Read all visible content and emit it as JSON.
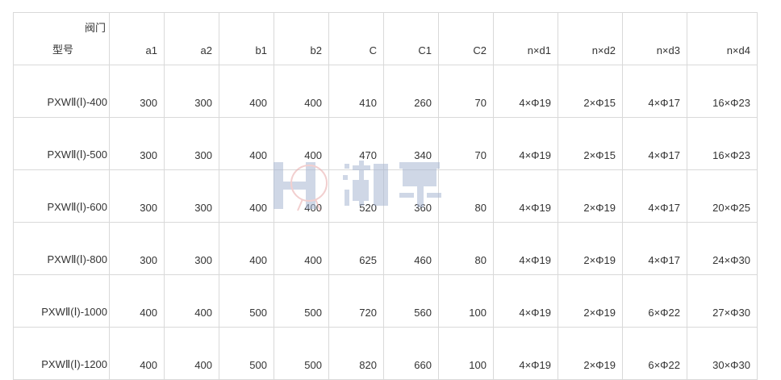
{
  "header": {
    "corner_top": "阀门",
    "corner_bottom": "型号",
    "columns": [
      "a1",
      "a2",
      "b1",
      "b2",
      "C",
      "C1",
      "C2",
      "n×d1",
      "n×d2",
      "n×d3",
      "n×d4"
    ]
  },
  "rows": [
    [
      "PXWⅡ(Ⅰ)-400",
      "300",
      "300",
      "400",
      "400",
      "410",
      "260",
      "70",
      "4×Φ19",
      "2×Φ15",
      "4×Φ17",
      "16×Φ23"
    ],
    [
      "PXWⅡ(Ⅰ)-500",
      "300",
      "300",
      "400",
      "400",
      "470",
      "340",
      "70",
      "4×Φ19",
      "2×Φ15",
      "4×Φ17",
      "16×Φ23"
    ],
    [
      "PXWⅡ(Ⅰ)-600",
      "300",
      "300",
      "400",
      "400",
      "520",
      "360",
      "80",
      "4×Φ19",
      "2×Φ19",
      "4×Φ17",
      "20×Φ25"
    ],
    [
      "PXWⅡ(Ⅰ)-800",
      "300",
      "300",
      "400",
      "400",
      "625",
      "460",
      "80",
      "4×Φ19",
      "2×Φ19",
      "4×Φ17",
      "24×Φ30"
    ],
    [
      "PXWⅡ(Ⅰ)-1000",
      "400",
      "400",
      "500",
      "500",
      "720",
      "560",
      "100",
      "4×Φ19",
      "2×Φ19",
      "6×Φ22",
      "27×Φ30"
    ],
    [
      "PXWⅡ(Ⅰ)-1200",
      "400",
      "400",
      "500",
      "500",
      "820",
      "660",
      "100",
      "4×Φ19",
      "2×Φ19",
      "6×Φ22",
      "30×Φ30"
    ]
  ],
  "watermark": {
    "text": "湖泉",
    "logo": "HQ"
  }
}
